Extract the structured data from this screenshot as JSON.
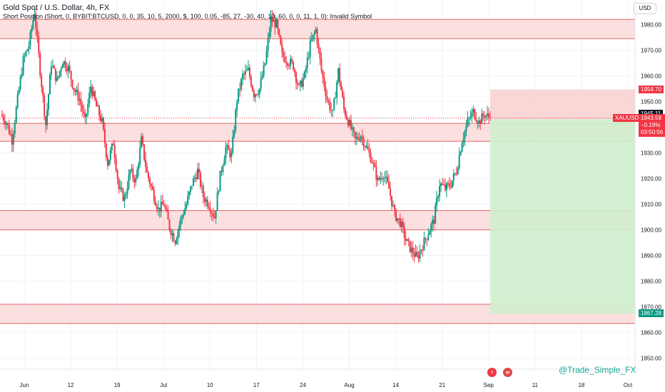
{
  "header": {
    "title": "Gold Spot / U.S. Dollar, 4h, FX",
    "indicator": "Short Position (Short, 0, BYBIT:BTCUSD, 0, 0, 35, 10, 5, 2000, $, 100, 0.05, -85, 27, -30, 40, 10, 60, 0, 0, 11, 1, 0): Invalid Symbol"
  },
  "currency": "USD",
  "watermark": "@Trade_Simple_FX",
  "icons": {
    "flash": "lightning-icon",
    "flag": "us-flag-icon"
  },
  "colors": {
    "up": "#089981",
    "down": "#f23645",
    "zone": "#fbd6d6",
    "zoneLine": "#e06666",
    "target": "#cfeecd",
    "stop": "#f8d0d0"
  },
  "chart_data": {
    "type": "candlestick",
    "symbol": "XAUUSD",
    "ylim": [
      1847,
      1988
    ],
    "yticks": [
      1850.0,
      1860.0,
      1870.0,
      1880.0,
      1890.0,
      1900.0,
      1910.0,
      1920.0,
      1930.0,
      1940.0,
      1950.0,
      1960.0,
      1970.0,
      1980.0
    ],
    "xticks": [
      "Jun",
      "12",
      "19",
      "Jul",
      "10",
      "17",
      "24",
      "Aug",
      "14",
      "21",
      "Sep",
      "11",
      "18",
      "Oct"
    ],
    "zones": [
      [
        1974.5,
        1982
      ],
      [
        1934.5,
        1941.5
      ],
      [
        1900,
        1907.5
      ],
      [
        1863.5,
        1871
      ]
    ],
    "position": {
      "entry": 1943.1,
      "stop": 1954.7,
      "target": 1867.28
    },
    "price_labels": {
      "stop": "1954.70",
      "high_mark": "1945.11",
      "last": "1943.59",
      "change": "−0.19%",
      "countdown": "03:50:56",
      "target": "1867.28"
    },
    "path": [
      1945,
      1942,
      1935,
      1951,
      1966,
      1972,
      1985,
      1962,
      1941,
      1965,
      1958,
      1966,
      1963,
      1955,
      1951,
      1942,
      1956,
      1948,
      1942,
      1926,
      1934,
      1916,
      1912,
      1923,
      1919,
      1935,
      1922,
      1915,
      1908,
      1910,
      1901,
      1896,
      1904,
      1910,
      1918,
      1923,
      1913,
      1910,
      1905,
      1921,
      1932,
      1929,
      1951,
      1960,
      1962,
      1953,
      1955,
      1965,
      1982,
      1980,
      1968,
      1966,
      1964,
      1955,
      1960,
      1972,
      1978,
      1962,
      1951,
      1945,
      1962,
      1947,
      1941,
      1935,
      1937,
      1932,
      1927,
      1919,
      1922,
      1916,
      1906,
      1903,
      1896,
      1892,
      1889,
      1894,
      1899,
      1904,
      1918,
      1916,
      1918,
      1923,
      1935,
      1942,
      1946,
      1942,
      1945,
      1943.59
    ]
  }
}
